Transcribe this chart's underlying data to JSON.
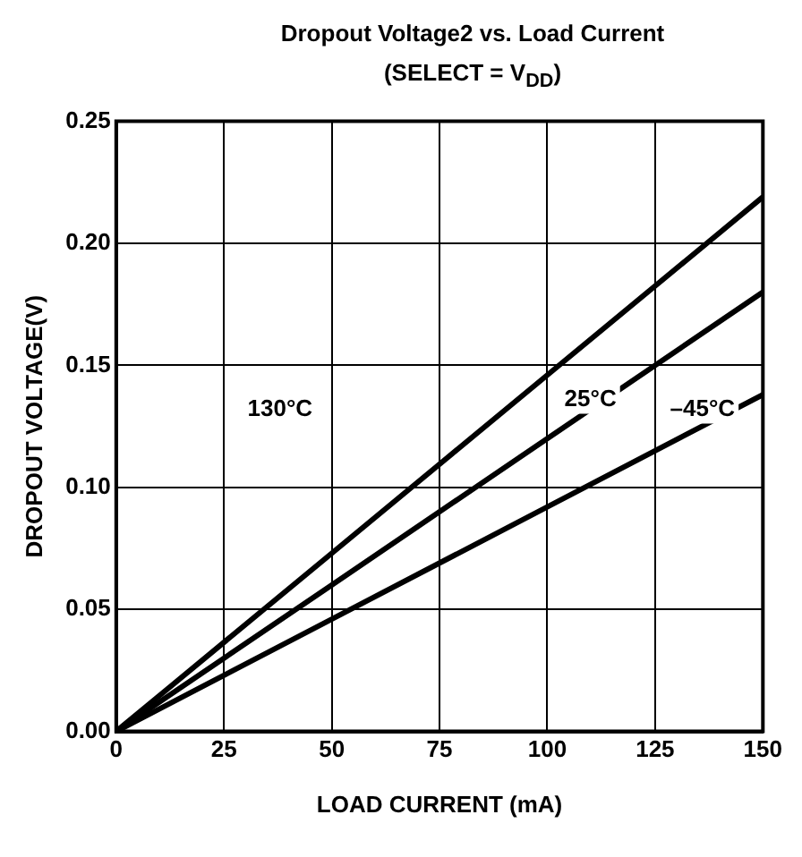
{
  "chart_data": {
    "type": "line",
    "title": "Dropout Voltage2 vs. Load Current",
    "subtitle": "(SELECT = V$_{DD}$)",
    "xlabel": "LOAD CURRENT (mA)",
    "ylabel": "DROPOUT VOLTAGE(V)",
    "xlim": [
      0,
      150
    ],
    "xticks": [
      0,
      25,
      50,
      75,
      100,
      125,
      150
    ],
    "ylim": [
      0,
      0.25
    ],
    "yticks": [
      {
        "value": 0,
        "label": "0.00"
      },
      {
        "value": 0.05,
        "label": "0.05"
      },
      {
        "value": 0.1,
        "label": "0.10"
      },
      {
        "value": 0.15,
        "label": "0.15"
      },
      {
        "value": 0.2,
        "label": "0.20"
      },
      {
        "value": 0.25,
        "label": "0.25"
      }
    ],
    "x": [
      0,
      50,
      100,
      150
    ],
    "grid": true,
    "legend": false,
    "marker": "none",
    "line_style": "solid",
    "series": [
      {
        "color": "#000000",
        "values": [
          0,
          0.073,
          0.146,
          0.219
        ]
      },
      {
        "color": "#000000",
        "values": [
          0,
          0.06,
          0.12,
          0.18
        ]
      },
      {
        "color": "#000000",
        "values": [
          0,
          0.046,
          0.092,
          0.138
        ]
      }
    ],
    "annotations": [
      {
        "text": "130°C",
        "x": 38,
        "y": 0.132
      },
      {
        "text": "25°C",
        "x": 110,
        "y": 0.136
      },
      {
        "text": "–45°C",
        "x": 136,
        "y": 0.132
      }
    ]
  }
}
